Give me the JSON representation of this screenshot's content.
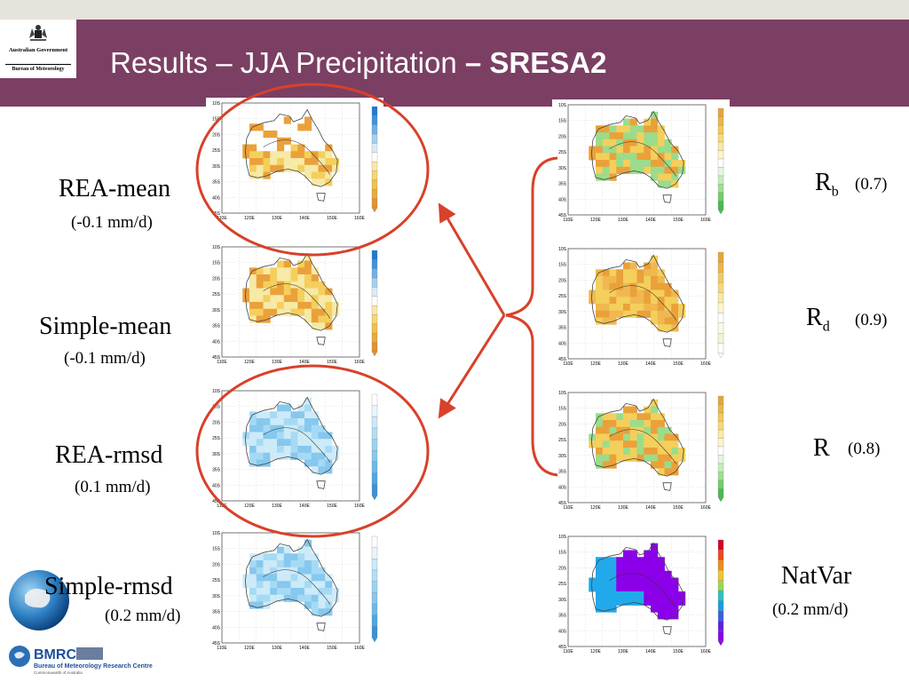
{
  "slide": {
    "title_main": "Results – JJA Precipitation ",
    "title_bold": "– SRESA2",
    "logo": {
      "line1": "Australian Government",
      "line2": "Bureau of Meteorology"
    },
    "bmrc_logo": {
      "acronym": "BMRC",
      "name": "Bureau of Meteorology Research Centre",
      "subtitle": "Commonwealth of Australia"
    },
    "left_panels": [
      {
        "label": "REA-mean",
        "value": "(-0.1 mm/d)",
        "palette": "dry",
        "circled": true
      },
      {
        "label": "Simple-mean",
        "value": "(-0.1 mm/d)",
        "palette": "dry",
        "circled": false
      },
      {
        "label": "REA-rmsd",
        "value": "(0.1 mm/d)",
        "palette": "blue",
        "circled": true
      },
      {
        "label": "Simple-rmsd",
        "value": "(0.2 mm/d)",
        "palette": "blue",
        "circled": false
      }
    ],
    "right_panels": [
      {
        "label_main": "R",
        "label_sub": "b",
        "value": "(0.7)",
        "palette": "mixgreen"
      },
      {
        "label_main": "R",
        "label_sub": "d",
        "value": "(0.9)",
        "palette": "orange"
      },
      {
        "label_main": "R",
        "label_sub": "",
        "value": "(0.8)",
        "palette": "mixorange"
      },
      {
        "label_main": "NatVar",
        "label_sub": "",
        "value": "(0.2 mm/d)",
        "palette": "natvar"
      }
    ],
    "map_axes": {
      "lat_ticks": [
        "10S",
        "15S",
        "20S",
        "25S",
        "30S",
        "35S",
        "40S",
        "45S"
      ],
      "lon_ticks": [
        "110E",
        "120E",
        "130E",
        "140E",
        "150E",
        "160E"
      ]
    }
  },
  "colors": {
    "header": "#7b3f63",
    "circle": "#d8412a",
    "arrow": "#d8412a",
    "bracket": "#d8412a",
    "dry_light": "#f7e9a6",
    "dry_mid": "#f4cf5c",
    "dry_dark": "#eaa13a",
    "green": "#9bdc8a",
    "blue_light": "#cdeaf8",
    "blue_mid": "#86c8ee",
    "nat_purple": "#8b00e8",
    "nat_cyan": "#21a9ea"
  }
}
